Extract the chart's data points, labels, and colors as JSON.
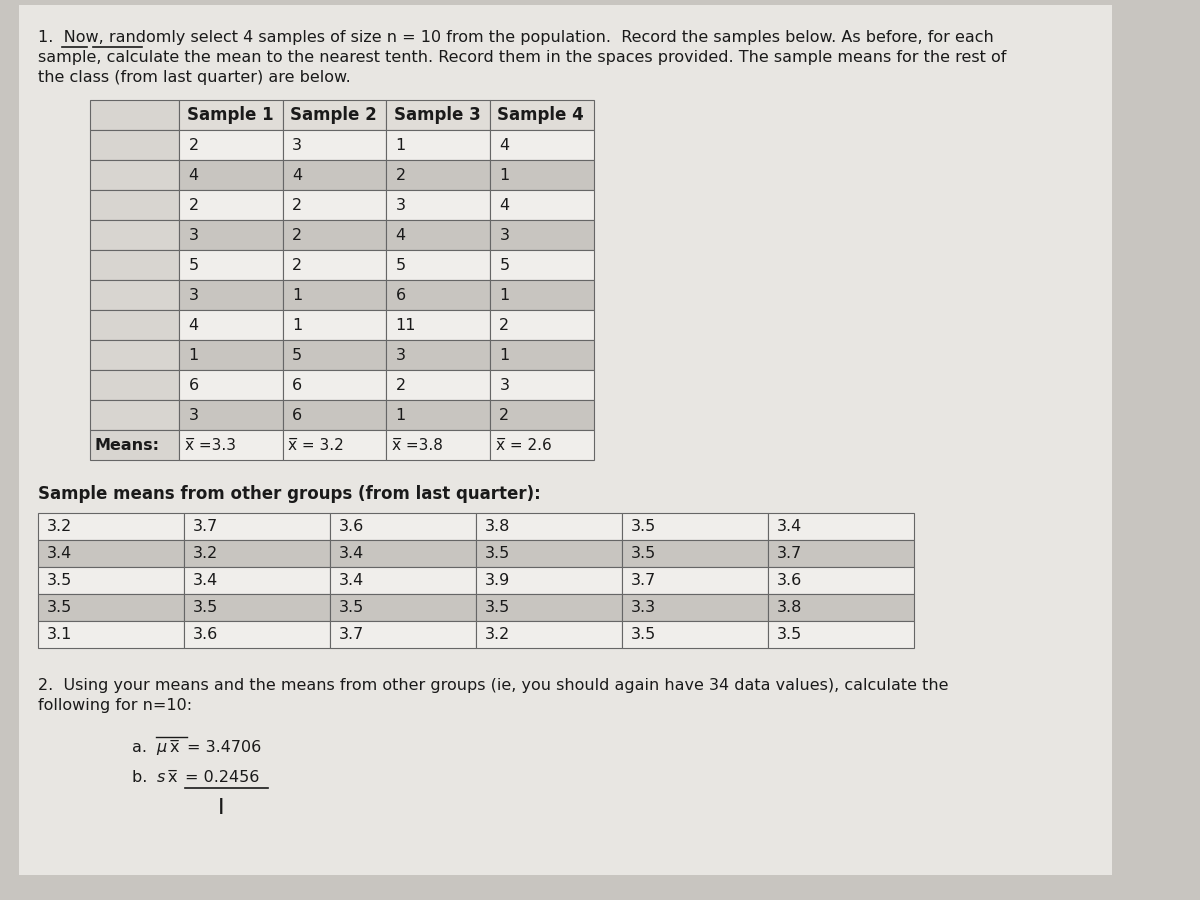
{
  "bg_color": "#c8c5c0",
  "page_color": "#e8e6e2",
  "text_color": "#1a1a1a",
  "title_line1": "1.  Now, randomly select 4 samples of size n = 10 from the population.  Record the samples below. As before, for each",
  "title_line2": "sample, calculate the mean to the nearest tenth. Record them in the spaces provided. The sample means for the rest of",
  "title_line3": "the class (from last quarter) are below.",
  "sample_headers": [
    "Sample 1",
    "Sample 2",
    "Sample 3",
    "Sample 4"
  ],
  "sample_data": [
    [
      2,
      3,
      1,
      4
    ],
    [
      4,
      4,
      2,
      1
    ],
    [
      2,
      2,
      3,
      4
    ],
    [
      3,
      2,
      4,
      3
    ],
    [
      5,
      2,
      5,
      5
    ],
    [
      3,
      1,
      6,
      1
    ],
    [
      4,
      1,
      11,
      2
    ],
    [
      1,
      5,
      3,
      1
    ],
    [
      6,
      6,
      2,
      3
    ],
    [
      3,
      6,
      1,
      2
    ]
  ],
  "means_label": "Means:",
  "means_values": [
    "x̅ =3.3",
    "x̅ = 3.2",
    "x̅ =3.8",
    "x̅ = 2.6"
  ],
  "other_groups_title": "Sample means from other groups (from last quarter):",
  "other_groups_data": [
    [
      3.2,
      3.7,
      3.6,
      3.8,
      3.5,
      3.4
    ],
    [
      3.4,
      3.2,
      3.4,
      3.5,
      3.5,
      3.7
    ],
    [
      3.5,
      3.4,
      3.4,
      3.9,
      3.7,
      3.6
    ],
    [
      3.5,
      3.5,
      3.5,
      3.5,
      3.3,
      3.8
    ],
    [
      3.1,
      3.6,
      3.7,
      3.2,
      3.5,
      3.5
    ]
  ],
  "q2_line1": "2.  Using your means and the means from other groups (ie, you should again have 34 data values), calculate the",
  "q2_line2": "following for n=10:",
  "q2a": "a.  μx = 3.4706",
  "q2b": "b.  sx = 0.2456",
  "table_white": "#f0eeeb",
  "table_stripe": "#c8c5c0",
  "table_header_bg": "#e0ddd8",
  "table_border": "#666666",
  "cell_left_bg": "#d8d5d0",
  "font_size": 11.5,
  "header_font_size": 12.0,
  "title_font_size": 11.5
}
